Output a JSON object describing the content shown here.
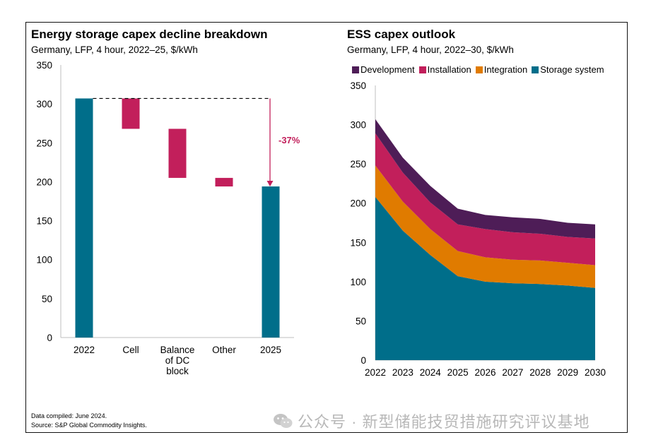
{
  "colors": {
    "teal": "#006E8A",
    "magenta": "#C21F5B",
    "orange": "#E07B00",
    "purple": "#4E1D57"
  },
  "chart_data": [
    {
      "type": "bar",
      "subtype": "waterfall",
      "title": "Energy storage capex decline breakdown",
      "subtitle": "Germany, LFP, 4 hour, 2022–25, $/kWh",
      "categories": [
        "2022",
        "Cell",
        "Balance of DC block",
        "Other",
        "2025"
      ],
      "category_lines": [
        [
          "2022"
        ],
        [
          "Cell"
        ],
        [
          "Balance",
          "of DC",
          "block"
        ],
        [
          "Other"
        ],
        [
          "2025"
        ]
      ],
      "bars": [
        {
          "label": "2022",
          "kind": "total",
          "start": 0,
          "end": 307
        },
        {
          "label": "Cell",
          "kind": "decrease",
          "start": 307,
          "end": 268
        },
        {
          "label": "Balance of DC block",
          "kind": "decrease",
          "start": 268,
          "end": 205
        },
        {
          "label": "Other",
          "kind": "decrease",
          "start": 205,
          "end": 194
        },
        {
          "label": "2025",
          "kind": "total",
          "start": 0,
          "end": 194
        }
      ],
      "ylim": [
        0,
        350
      ],
      "yticks": [
        0,
        50,
        100,
        150,
        200,
        250,
        300,
        350
      ],
      "annotation": "-37%",
      "reference_value": 307
    },
    {
      "type": "area",
      "stacked": true,
      "title": "ESS capex outlook",
      "subtitle": "Germany, LFP, 4 hour, 2022–30, $/kWh",
      "x": [
        "2022",
        "2023",
        "2024",
        "2025",
        "2026",
        "2027",
        "2028",
        "2029",
        "2030"
      ],
      "series": [
        {
          "name": "Storage system",
          "color_key": "teal",
          "values": [
            208,
            165,
            134,
            107,
            100,
            98,
            97,
            95,
            92
          ]
        },
        {
          "name": "Integration",
          "color_key": "orange",
          "values": [
            40,
            37,
            33,
            32,
            31,
            30,
            30,
            29,
            29
          ]
        },
        {
          "name": "Installation",
          "color_key": "magenta",
          "values": [
            41,
            37,
            34,
            34,
            36,
            35,
            34,
            33,
            34
          ]
        },
        {
          "name": "Development",
          "color_key": "purple",
          "values": [
            18,
            19,
            21,
            20,
            18,
            19,
            19,
            18,
            18
          ]
        }
      ],
      "legend_order": [
        "Development",
        "Installation",
        "Integration",
        "Storage system"
      ],
      "ylim": [
        0,
        350
      ],
      "yticks": [
        0,
        50,
        100,
        150,
        200,
        250,
        300,
        350
      ]
    }
  ],
  "footnote": {
    "compiled": "Data compiled: June 2024.",
    "source": "Source: S&P Global Commodity Insights."
  },
  "watermark": "公众号 · 新型储能技贸措施研究评议基地"
}
